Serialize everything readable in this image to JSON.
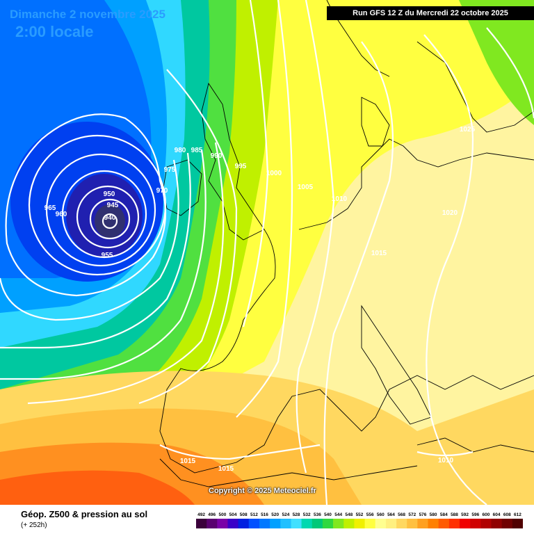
{
  "header": {
    "date_title": "Dimanche 2 novembre 2025",
    "time_title": "2:00 locale",
    "run_info": "Run GFS 12 Z du Mercredi 22 octobre 2025"
  },
  "footer": {
    "product": "Géop. Z500 & pression au sol",
    "lead_time": "(+ 252h)",
    "copyright": "Copyright © 2025 Meteociel.fr"
  },
  "color_scale": {
    "ticks": [
      "492",
      "496",
      "500",
      "504",
      "508",
      "512",
      "516",
      "520",
      "524",
      "528",
      "532",
      "536",
      "540",
      "544",
      "548",
      "552",
      "556",
      "560",
      "564",
      "568",
      "572",
      "576",
      "580",
      "584",
      "588",
      "592",
      "596",
      "600",
      "604",
      "608",
      "612"
    ],
    "colors": [
      "#3b003b",
      "#5a0070",
      "#7a00a8",
      "#3a00c8",
      "#0020e0",
      "#0050ff",
      "#0078ff",
      "#00a0ff",
      "#20c0ff",
      "#40e0ff",
      "#00d8b0",
      "#00c878",
      "#30d840",
      "#80e820",
      "#c0f000",
      "#f0f000",
      "#ffff40",
      "#ffff90",
      "#fff080",
      "#ffd860",
      "#ffc040",
      "#ffa020",
      "#ff8000",
      "#ff5a00",
      "#ff3000",
      "#f00000",
      "#d00000",
      "#b00000",
      "#900000",
      "#700000",
      "#500000"
    ]
  },
  "isobar_labels": [
    {
      "text": "940"
    },
    {
      "text": "945"
    },
    {
      "text": "950"
    },
    {
      "text": "955"
    },
    {
      "text": "960"
    },
    {
      "text": "965"
    },
    {
      "text": "970"
    },
    {
      "text": "975"
    },
    {
      "text": "980"
    },
    {
      "text": "985"
    },
    {
      "text": "990"
    },
    {
      "text": "995"
    },
    {
      "text": "1000"
    },
    {
      "text": "1005"
    },
    {
      "text": "1010"
    },
    {
      "text": "1015"
    },
    {
      "text": "1020"
    },
    {
      "text": "1025"
    },
    {
      "text": "1015"
    },
    {
      "text": "1015"
    },
    {
      "text": "1010"
    }
  ]
}
